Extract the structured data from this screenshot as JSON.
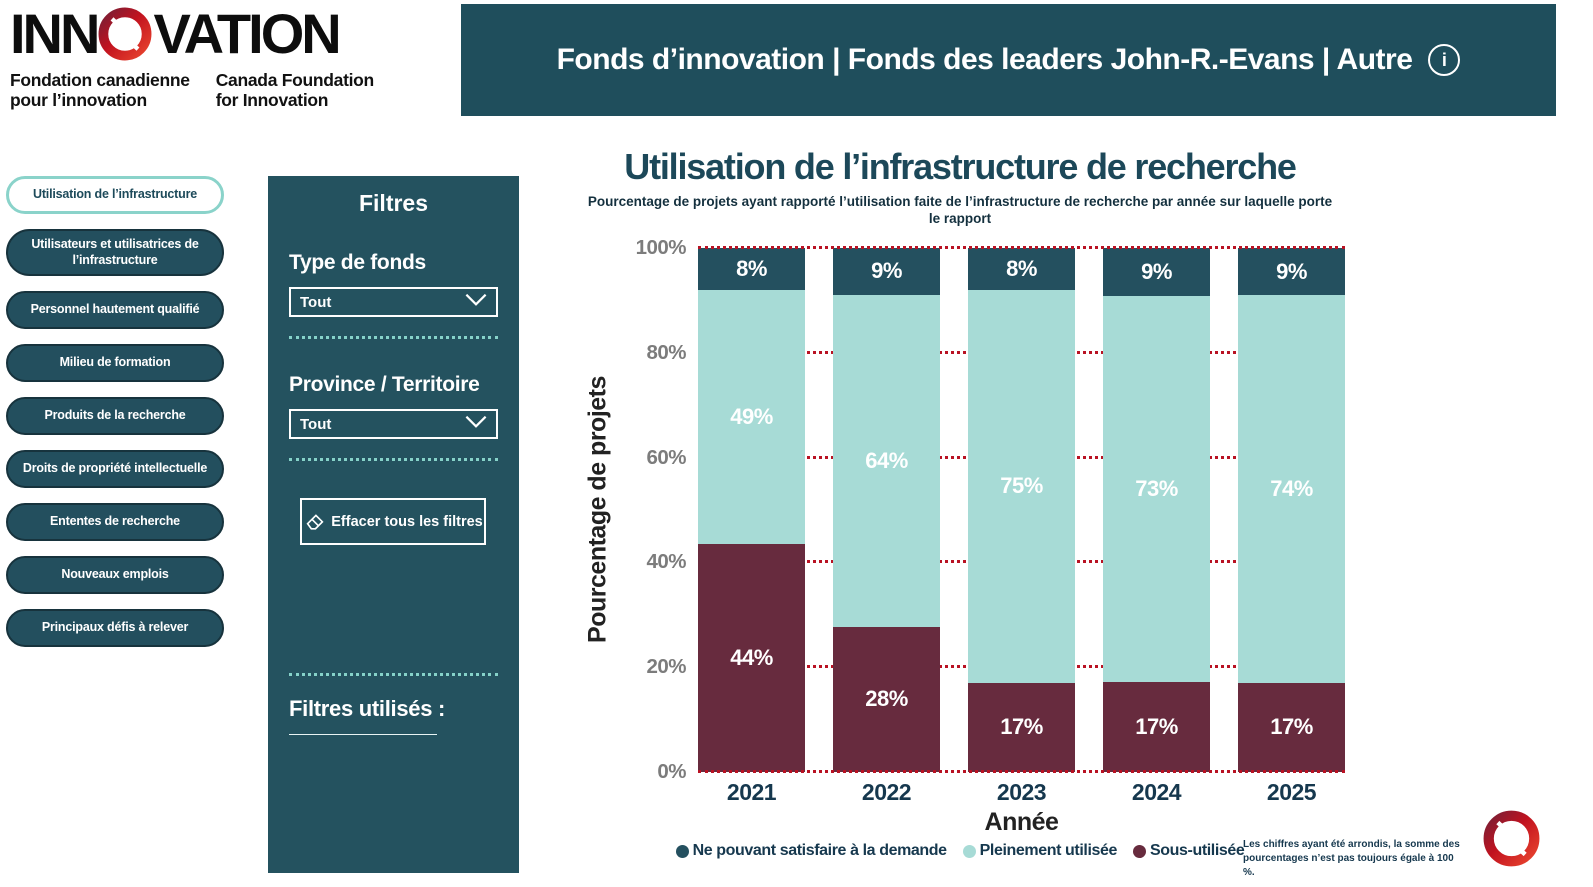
{
  "logo": {
    "wordmark_left": "INN",
    "wordmark_right": "VATION",
    "tagline_fr": "Fondation canadienne\npour l’innovation",
    "tagline_en": "Canada Foundation\nfor Innovation"
  },
  "header": {
    "title": "Fonds d’innovation | Fonds des leaders John-R.-Evans | Autre",
    "info_icon": "info-circle",
    "bg_color": "#1F4E5C"
  },
  "sidebar": {
    "items": [
      {
        "label": "Utilisation de l’infrastructure",
        "active": true
      },
      {
        "label": "Utilisateurs et utilisatrices de l’infrastructure",
        "active": false
      },
      {
        "label": "Personnel hautement qualifié",
        "active": false
      },
      {
        "label": "Milieu de formation",
        "active": false
      },
      {
        "label": "Produits de la recherche",
        "active": false
      },
      {
        "label": "Droits de propriété intellectuelle",
        "active": false
      },
      {
        "label": "Ententes de recherche",
        "active": false
      },
      {
        "label": "Nouveaux emplois",
        "active": false
      },
      {
        "label": "Principaux défis à relever",
        "active": false
      }
    ]
  },
  "filters": {
    "title": "Filtres",
    "fund_type_label": "Type de fonds",
    "fund_type_value": "Tout",
    "province_label": "Province / Territoire",
    "province_value": "Tout",
    "clear_button_label": "Effacer tous les filtres",
    "used_filters_label": "Filtres utilisés :"
  },
  "chart_data": {
    "type": "bar",
    "stacked": true,
    "title": "Utilisation de l’infrastructure de recherche",
    "subtitle": "Pourcentage de projets ayant rapporté l’utilisation faite de l’infrastructure de recherche par année sur laquelle porte le rapport",
    "categories": [
      "2021",
      "2022",
      "2023",
      "2024",
      "2025"
    ],
    "series": [
      {
        "name": "Ne pouvant satisfaire à la demande",
        "color": "#24505F",
        "values": [
          8,
          9,
          8,
          9,
          9
        ]
      },
      {
        "name": "Pleinement utilisée",
        "color": "#A7DBD6",
        "values": [
          49,
          64,
          75,
          73,
          74
        ]
      },
      {
        "name": "Sous-utilisée",
        "color": "#672B3E",
        "values": [
          44,
          28,
          17,
          17,
          17
        ]
      }
    ],
    "xlabel": "Année",
    "ylabel": "Pourcentage de projets",
    "ylim": [
      0,
      100
    ],
    "yticks": [
      "0%",
      "20%",
      "40%",
      "60%",
      "80%",
      "100%"
    ],
    "gridline_color": "#B91223",
    "grid": "dotted horizontal",
    "legend_position": "bottom"
  },
  "footnote": "Les chiffres ayant été arrondis, la somme des pourcentages n’est pas toujours égale à 100 %."
}
